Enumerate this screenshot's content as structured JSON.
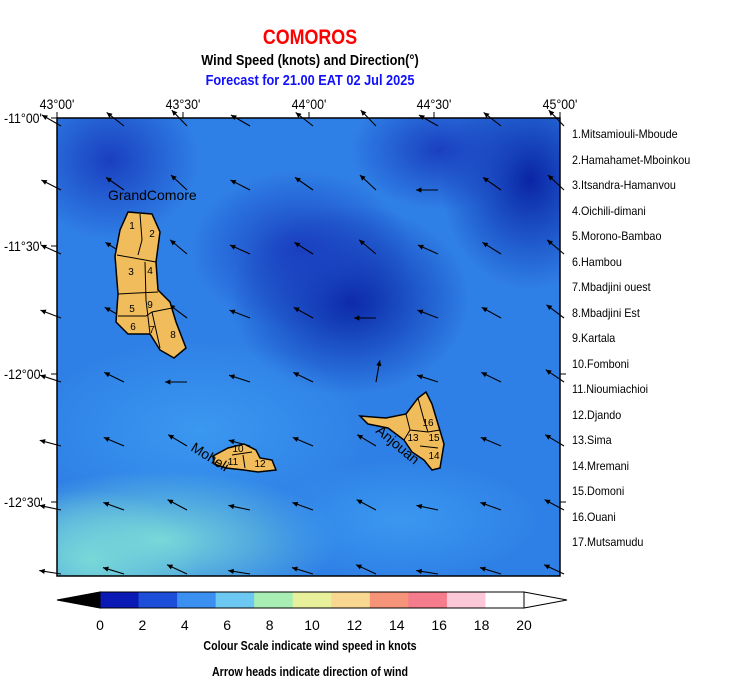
{
  "title": "COMOROS",
  "subtitle": "Wind Speed (knots) and Direction(°)",
  "forecast": "Forecast for  21.00 EAT 02 Jul 2025",
  "lon_labels": [
    "43°00'",
    "43°30'",
    "44°00'",
    "44°30'",
    "45°00'"
  ],
  "lat_labels": [
    "-11°00'",
    "-11°30'",
    "-12°00'",
    "-12°30'"
  ],
  "island_labels": {
    "grand": "GrandComore",
    "moheli": "Moheli",
    "anjouan": "Anjouan"
  },
  "regions": [
    "1.Mitsamiouli-Mboude",
    "2.Hamahamet-Mboinkou",
    "3.Itsandra-Hamanvou",
    "4.Oichili-dimani",
    "5.Morono-Bambao",
    "6.Hambou",
    "7.Mbadjini ouest",
    "8.Mbadjini Est",
    "9.Kartala",
    "10.Fomboni",
    "11.Nioumiachioi",
    "12.Djando",
    "13.Sima",
    "14.Mremani",
    "15.Domoni",
    "16.Ouani",
    "17.Mutsamudu"
  ],
  "region_numbers_grand": [
    "1",
    "2",
    "3",
    "4",
    "5",
    "6",
    "7",
    "8",
    "9"
  ],
  "region_numbers_moheli": [
    "10",
    "11",
    "12"
  ],
  "region_numbers_anjouan": [
    "13",
    "14",
    "15",
    "16"
  ],
  "colorbar": {
    "ticks": [
      "0",
      "2",
      "4",
      "6",
      "8",
      "10",
      "12",
      "14",
      "16",
      "18",
      "20"
    ],
    "min": 0,
    "max": 20,
    "colors": [
      "#000000",
      "#0a1ab4",
      "#1c4ed8",
      "#3a8ff0",
      "#6cc8f0",
      "#a8eeb4",
      "#e8f09c",
      "#f8d890",
      "#f59478",
      "#f47c8c",
      "#fac8d6",
      "#ffffff"
    ]
  },
  "caption1": "Colour Scale indicate wind speed in knots",
  "caption2": "Arrow heads indicate direction of wind"
}
